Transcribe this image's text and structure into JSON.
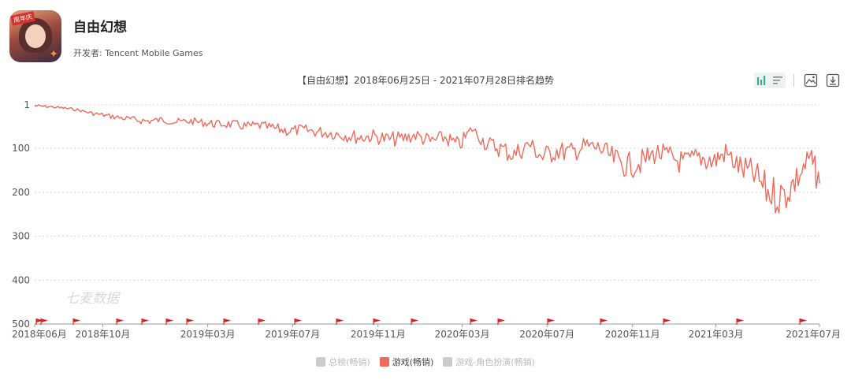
{
  "app": {
    "name": "自由幻想",
    "developer": "开发者: Tencent Mobile Games",
    "icon_badge": "周年庆"
  },
  "toolbar": {
    "icons": [
      "line-chart-icon",
      "list-icon",
      "image-download-icon",
      "download-icon"
    ],
    "active_color": "#2db38a"
  },
  "chart_data": {
    "type": "line",
    "title": "【自由幻想】2018年06月25日 - 2021年07月28日排名趋势",
    "watermark": "七麦数据",
    "y_reversed": true,
    "ylim": [
      1,
      500
    ],
    "yticks": [
      "1",
      "100",
      "200",
      "300",
      "400",
      "500"
    ],
    "x_range": [
      "2018-06-25",
      "2021-07-28"
    ],
    "xticks": [
      {
        "label": "2018年06月",
        "date": "2018-06-25"
      },
      {
        "label": "2018年10月",
        "date": "2018-10-01"
      },
      {
        "label": "2019年03月",
        "date": "2019-03-01"
      },
      {
        "label": "2019年07月",
        "date": "2019-07-01"
      },
      {
        "label": "2019年11月",
        "date": "2019-11-01"
      },
      {
        "label": "2020年03月",
        "date": "2020-03-01"
      },
      {
        "label": "2020年07月",
        "date": "2020-07-01"
      },
      {
        "label": "2020年11月",
        "date": "2020-11-01"
      },
      {
        "label": "2021年03月",
        "date": "2021-03-01"
      },
      {
        "label": "2021年07月",
        "date": "2021-07-28"
      }
    ],
    "grid": "dashed-horizontal",
    "legend_position": "bottom",
    "legend": [
      {
        "name": "总榜(畅销)",
        "color": "#cccccc",
        "active": false
      },
      {
        "name": "游戏(畅销)",
        "color": "#ef6a5a",
        "active": true
      },
      {
        "name": "游戏-角色扮演(畅销)",
        "color": "#cccccc",
        "active": false
      }
    ],
    "series": [
      {
        "name": "游戏(畅销)",
        "color": "#ef6a5a",
        "x": [
          "2018-06-25",
          "2018-07-15",
          "2018-08-05",
          "2018-08-25",
          "2018-09-15",
          "2018-10-05",
          "2018-10-25",
          "2018-11-15",
          "2018-12-05",
          "2018-12-25",
          "2019-01-15",
          "2019-02-05",
          "2019-02-25",
          "2019-03-15",
          "2019-04-05",
          "2019-04-25",
          "2019-05-15",
          "2019-06-05",
          "2019-06-25",
          "2019-07-15",
          "2019-08-05",
          "2019-08-25",
          "2019-09-15",
          "2019-10-05",
          "2019-10-25",
          "2019-11-15",
          "2019-12-05",
          "2019-12-25",
          "2020-01-15",
          "2020-02-05",
          "2020-02-25",
          "2020-03-15",
          "2020-04-05",
          "2020-04-25",
          "2020-05-15",
          "2020-06-05",
          "2020-06-25",
          "2020-07-15",
          "2020-08-05",
          "2020-08-25",
          "2020-09-15",
          "2020-10-05",
          "2020-10-25",
          "2020-11-15",
          "2020-12-05",
          "2020-12-25",
          "2021-01-15",
          "2021-02-05",
          "2021-02-25",
          "2021-03-15",
          "2021-04-05",
          "2021-04-25",
          "2021-05-15",
          "2021-06-05",
          "2021-06-25",
          "2021-07-15",
          "2021-07-28"
        ],
        "values": [
          3,
          5,
          8,
          12,
          20,
          25,
          30,
          35,
          38,
          35,
          40,
          38,
          42,
          45,
          45,
          50,
          48,
          55,
          60,
          58,
          62,
          65,
          70,
          75,
          72,
          80,
          78,
          70,
          85,
          75,
          95,
          55,
          90,
          100,
          115,
          90,
          120,
          105,
          110,
          95,
          100,
          125,
          140,
          130,
          110,
          120,
          135,
          120,
          130,
          110,
          145,
          160,
          200,
          210,
          170,
          120,
          180
        ]
      }
    ]
  }
}
